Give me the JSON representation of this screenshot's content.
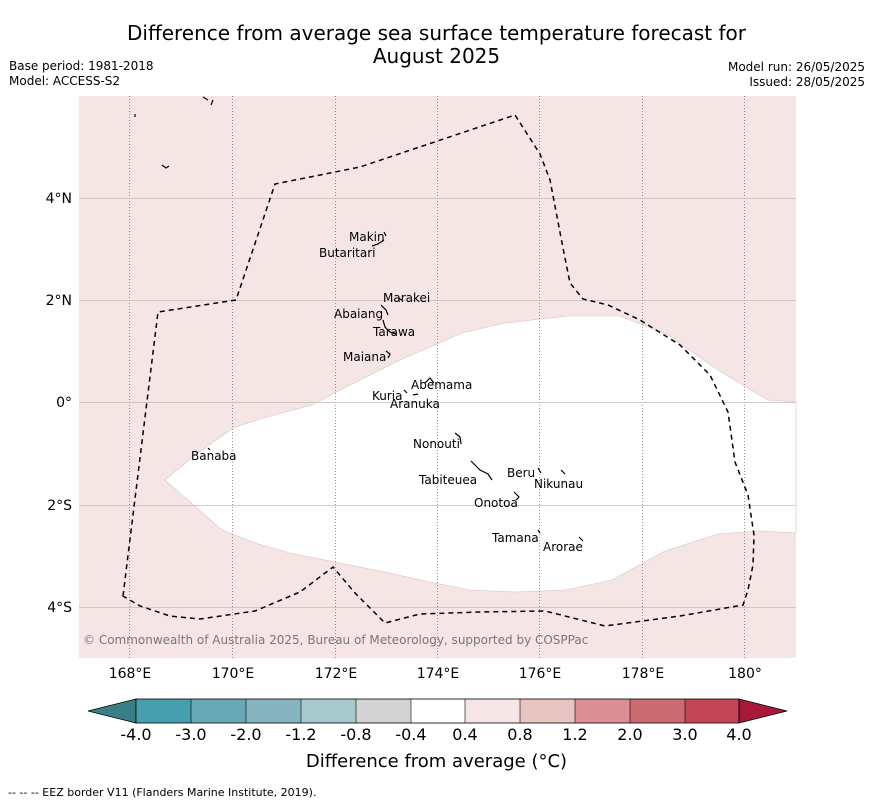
{
  "title": {
    "line1": "Difference from average sea surface temperature forecast for",
    "line2": "August 2025"
  },
  "meta_left": {
    "base_period": "Base period: 1981-2018",
    "model": "Model: ACCESS-S2"
  },
  "meta_right": {
    "model_run": "Model run: 26/05/2025",
    "issued": "Issued: 28/05/2025"
  },
  "map": {
    "longitude_ticks": [
      "168°E",
      "170°E",
      "172°E",
      "174°E",
      "176°E",
      "178°E",
      "180°"
    ],
    "latitude_ticks": [
      "4°N",
      "2°N",
      "0°",
      "2°S",
      "4°S"
    ],
    "islands": [
      "Makin",
      "Butaritari",
      "Marakei",
      "Abaiang",
      "Tarawa",
      "Maiana",
      "Abemama",
      "Kuria",
      "Aranuka",
      "Nonouti",
      "Banaba",
      "Beru",
      "Nikunau",
      "Tabiteuea",
      "Onotoa",
      "Tamana",
      "Arorae"
    ],
    "copyright": "© Commonwealth of Australia 2025, Bureau of Meteorology, supported by COSPPac",
    "colors": {
      "band_0.4_0.8": "#f5e6e5",
      "band_-0.4_0.4": "#ffffff"
    }
  },
  "colorbar": {
    "labels": [
      "-4.0",
      "-3.0",
      "-2.0",
      "-1.2",
      "-0.8",
      "-0.4",
      "0.4",
      "0.8",
      "1.2",
      "2.0",
      "3.0",
      "4.0"
    ],
    "colors": [
      "#3a7e88",
      "#479fad",
      "#67a9b5",
      "#86b5c0",
      "#a7c8cc",
      "#d3d3d3",
      "#ffffff",
      "#f5e6e5",
      "#e8c5c3",
      "#d98f95",
      "#cc6a72",
      "#c44555",
      "#a8183a"
    ],
    "title": "Difference from average (°C)"
  },
  "footer": "--  --  -- EEZ border V11 (Flanders Marine Institute, 2019)."
}
